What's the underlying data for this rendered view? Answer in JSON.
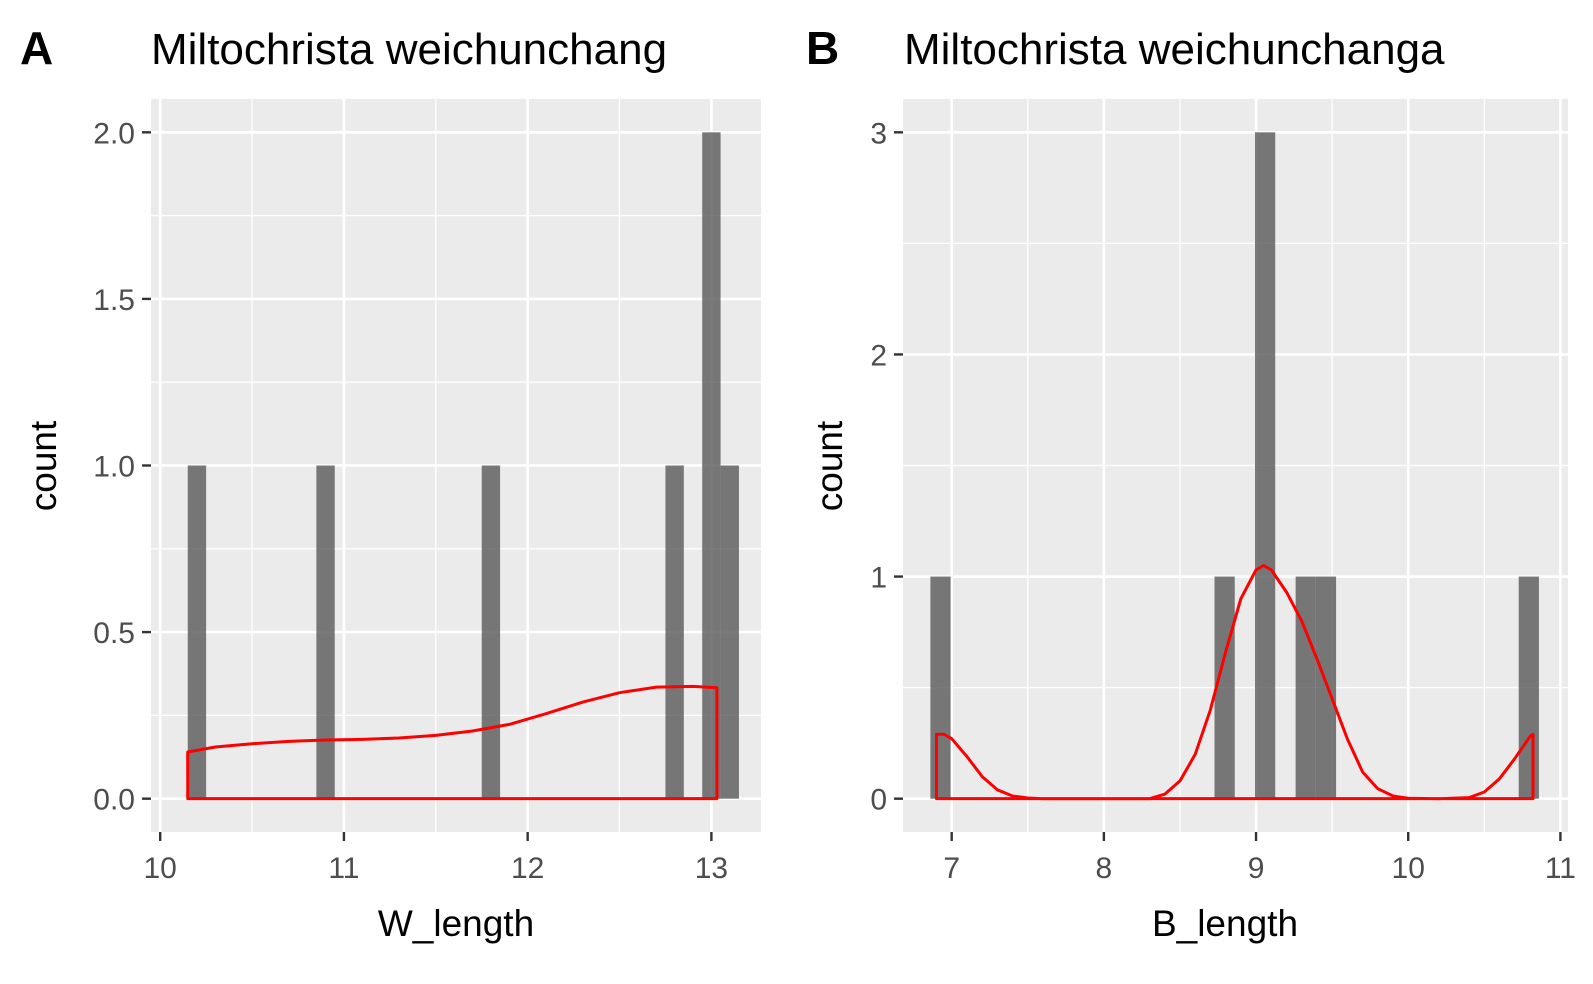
{
  "figure": {
    "panels": [
      {
        "tag": "A",
        "title": "Miltochrista weichunchang"
      },
      {
        "tag": "B",
        "title": "Miltochrista weichunchanga"
      }
    ]
  },
  "colors": {
    "bar": "#595959",
    "density": "#ff0000",
    "panel_background": "#ebebeb",
    "grid": "#ffffff"
  },
  "chart_data": [
    {
      "type": "histogram",
      "panel": "A",
      "title": "Miltochrista weichunchang",
      "xlabel": "W_length",
      "ylabel": "count",
      "xlim": [
        9.95,
        13.27
      ],
      "ylim": [
        -0.1,
        2.1
      ],
      "x_ticks": [
        10,
        11,
        12,
        13
      ],
      "x_tick_labels": [
        "10",
        "11",
        "12",
        "13"
      ],
      "y_ticks": [
        0.0,
        0.5,
        1.0,
        1.5,
        2.0
      ],
      "y_tick_labels": [
        "0.0",
        "0.5",
        "1.0",
        "1.5",
        "2.0"
      ],
      "bin_width": 0.1,
      "bins": [
        {
          "x0": 10.15,
          "x1": 10.25,
          "count": 1
        },
        {
          "x0": 10.85,
          "x1": 10.95,
          "count": 1
        },
        {
          "x0": 11.75,
          "x1": 11.85,
          "count": 1
        },
        {
          "x0": 12.75,
          "x1": 12.85,
          "count": 1
        },
        {
          "x0": 12.95,
          "x1": 13.05,
          "count": 2
        },
        {
          "x0": 13.05,
          "x1": 13.15,
          "count": 1
        }
      ],
      "density_overlay": {
        "color": "#ff0000",
        "x": [
          10.15,
          10.3,
          10.5,
          10.7,
          10.9,
          11.1,
          11.3,
          11.5,
          11.7,
          11.9,
          12.1,
          12.3,
          12.5,
          12.7,
          12.9,
          13.03
        ],
        "y": [
          0.14,
          0.155,
          0.165,
          0.172,
          0.176,
          0.178,
          0.182,
          0.19,
          0.203,
          0.223,
          0.255,
          0.29,
          0.318,
          0.335,
          0.337,
          0.333
        ]
      },
      "grid": true,
      "legend": "none"
    },
    {
      "type": "histogram",
      "panel": "B",
      "title": "Miltochrista weichunchanga",
      "xlabel": "B_length",
      "ylabel": "count",
      "xlim": [
        6.68,
        11.05
      ],
      "ylim": [
        -0.15,
        3.15
      ],
      "x_ticks": [
        7,
        8,
        9,
        10,
        11
      ],
      "x_tick_labels": [
        "7",
        "8",
        "9",
        "10",
        "11"
      ],
      "y_ticks": [
        0,
        1,
        2,
        3
      ],
      "y_tick_labels": [
        "0",
        "1",
        "2",
        "3"
      ],
      "bin_width": 0.133,
      "bins": [
        {
          "x0": 6.86,
          "x1": 6.993,
          "count": 1
        },
        {
          "x0": 8.727,
          "x1": 8.86,
          "count": 1
        },
        {
          "x0": 8.993,
          "x1": 9.126,
          "count": 3
        },
        {
          "x0": 9.26,
          "x1": 9.393,
          "count": 1
        },
        {
          "x0": 9.393,
          "x1": 9.526,
          "count": 1
        },
        {
          "x0": 10.726,
          "x1": 10.859,
          "count": 1
        }
      ],
      "density_overlay": {
        "color": "#ff0000",
        "x": [
          6.9,
          6.95,
          7.0,
          7.1,
          7.2,
          7.3,
          7.4,
          7.5,
          7.6,
          8.0,
          8.3,
          8.4,
          8.5,
          8.6,
          8.7,
          8.8,
          8.9,
          9.0,
          9.05,
          9.1,
          9.2,
          9.3,
          9.4,
          9.5,
          9.6,
          9.7,
          9.8,
          9.9,
          10.0,
          10.2,
          10.4,
          10.5,
          10.6,
          10.7,
          10.8,
          10.82
        ],
        "y": [
          0.29,
          0.29,
          0.27,
          0.19,
          0.1,
          0.04,
          0.012,
          0.003,
          0.0,
          0.0,
          0.0,
          0.02,
          0.08,
          0.2,
          0.4,
          0.66,
          0.9,
          1.03,
          1.05,
          1.03,
          0.93,
          0.8,
          0.63,
          0.45,
          0.27,
          0.12,
          0.045,
          0.012,
          0.002,
          0.0,
          0.005,
          0.03,
          0.09,
          0.18,
          0.28,
          0.29
        ]
      },
      "grid": true,
      "legend": "none"
    }
  ]
}
